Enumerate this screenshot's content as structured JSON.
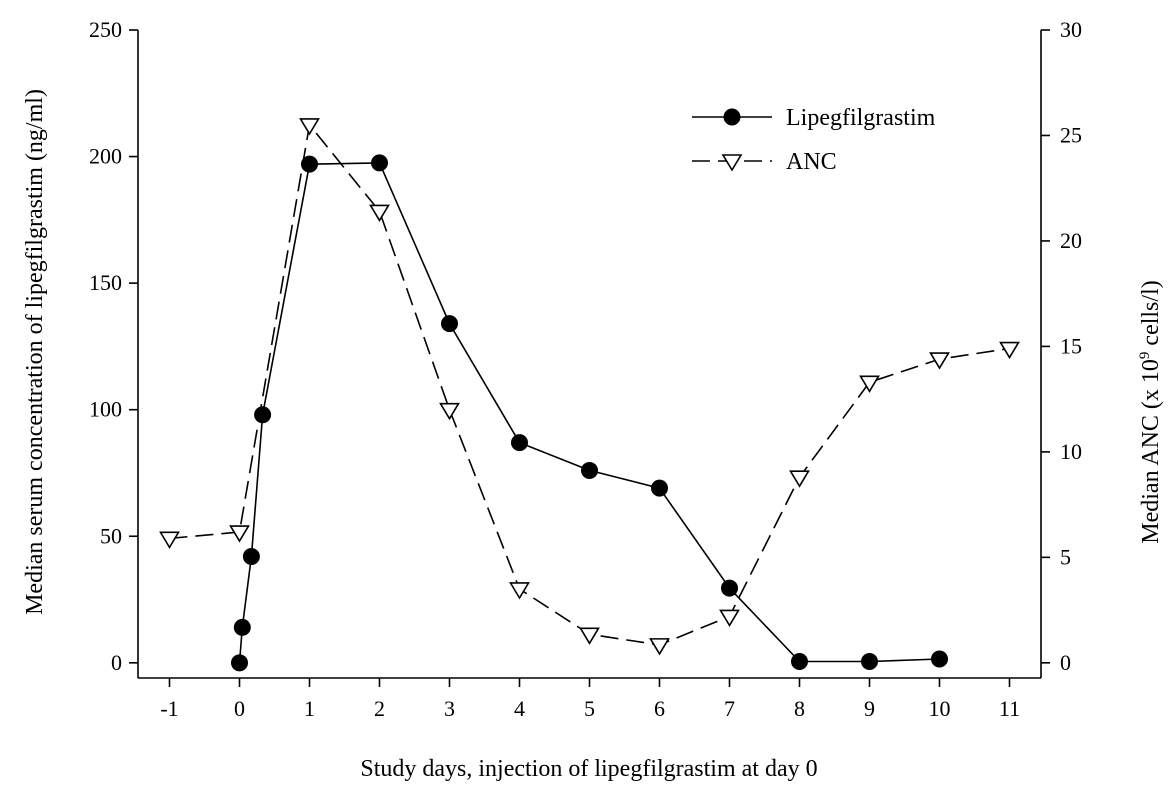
{
  "chart_data": {
    "type": "line",
    "xlabel": "Study days, injection of lipegfilgrastim at day 0",
    "ylabel_left": "Median serum concentration of lipegfilgrastim (ng/ml)",
    "ylabel_right_prefix": "Median ANC (x 10",
    "ylabel_right_exponent": "9",
    "ylabel_right_suffix": " cells/l)",
    "x_ticks": [
      "-1",
      "0",
      "1",
      "2",
      "3",
      "4",
      "5",
      "6",
      "7",
      "8",
      "9",
      "10",
      "11"
    ],
    "xlim": [
      -1.45,
      11.45
    ],
    "y_left_ticks": [
      "0",
      "50",
      "100",
      "150",
      "200",
      "250"
    ],
    "y_left_lim": [
      -6,
      250
    ],
    "y_right_ticks": [
      "0",
      "5",
      "10",
      "15",
      "20",
      "25",
      "30"
    ],
    "y_right_lim": [
      -0.72,
      30
    ],
    "grid": false,
    "legend_position": "top-right",
    "series": [
      {
        "name": "Lipegfilgrastim",
        "axis": "left",
        "line_style": "solid",
        "marker": "filled-circle",
        "x": [
          0,
          0.04,
          0.17,
          0.33,
          1,
          2,
          3,
          4,
          5,
          6,
          7,
          8,
          9,
          10
        ],
        "y": [
          0,
          14,
          42,
          98,
          197,
          197.5,
          134,
          87,
          76,
          69,
          29.5,
          0.5,
          0.5,
          1.5
        ]
      },
      {
        "name": "ANC",
        "axis": "right",
        "line_style": "dashed",
        "marker": "open-triangle-down",
        "x": [
          -1,
          0,
          1,
          2,
          3,
          4,
          5,
          6,
          7,
          8,
          9,
          10,
          11
        ],
        "y": [
          5.9,
          6.2,
          25.5,
          21.4,
          12,
          3.5,
          1.35,
          0.85,
          2.2,
          8.8,
          13.3,
          14.4,
          14.9
        ]
      }
    ]
  }
}
